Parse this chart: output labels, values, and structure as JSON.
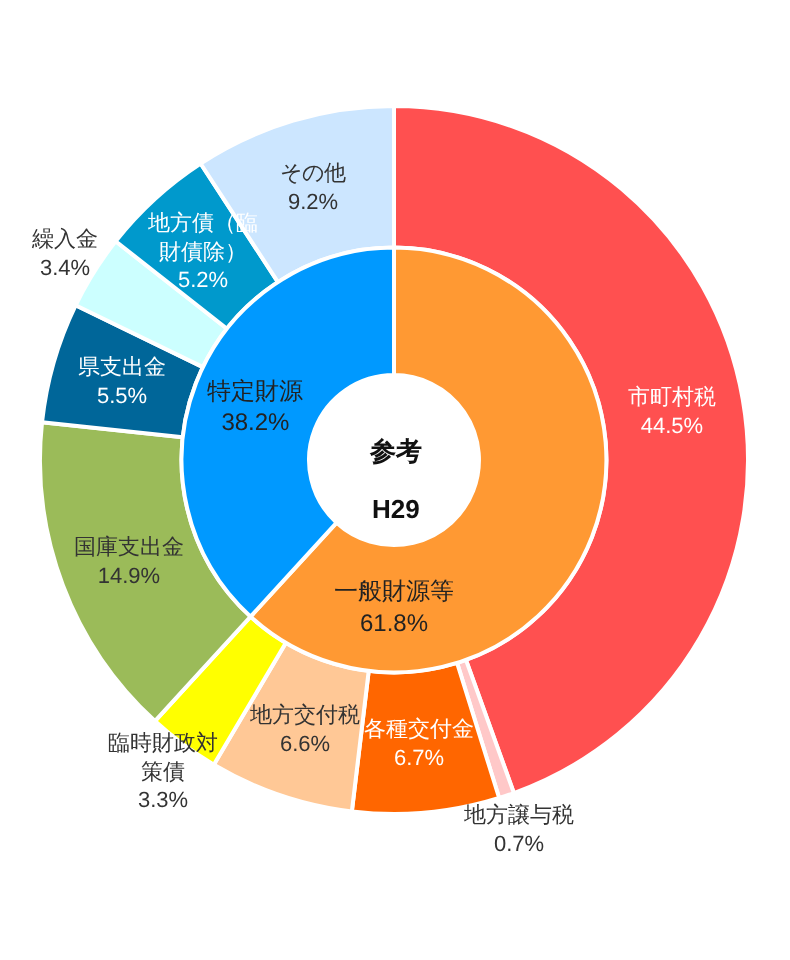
{
  "chart_data": [
    {
      "type": "donut",
      "categories": [
        "市町村税",
        "地方譲与税",
        "各種交付金",
        "地方交付税",
        "臨時財政対策債",
        "国庫支出金",
        "県支出金",
        "繰入金",
        "地方債（臨財債除）",
        "その他"
      ],
      "values": [
        44.5,
        0.7,
        6.7,
        6.6,
        3.3,
        14.9,
        5.5,
        3.4,
        5.2,
        9.2
      ],
      "value_labels": [
        "44.5%",
        "0.7%",
        "6.7%",
        "6.6%",
        "3.3%",
        "14.9%",
        "5.5%",
        "3.4%",
        "5.2%",
        "9.2%"
      ],
      "colors": [
        "#ff5050",
        "#ffc8c8",
        "#ff6600",
        "#ffc896",
        "#ffff00",
        "#9bbb59",
        "#006699",
        "#ccffff",
        "#0099cc",
        "#cce6ff"
      ],
      "legend": false
    },
    {
      "type": "donut",
      "title": "参考",
      "subtitle": "H29",
      "categories": [
        "一般財源等",
        "特定財源"
      ],
      "values": [
        61.8,
        38.2
      ],
      "value_labels": [
        "61.8%",
        "38.2%"
      ],
      "colors": [
        "#ff9933",
        "#0099ff"
      ],
      "legend": false
    }
  ]
}
